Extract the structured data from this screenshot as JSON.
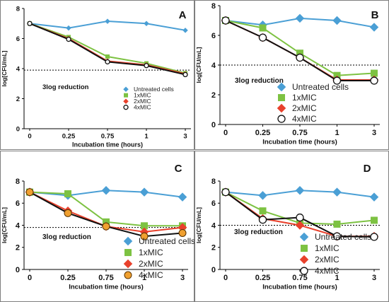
{
  "chart_data": [
    {
      "panel_label": "A",
      "type": "line",
      "categories": [
        "0",
        "0.25",
        "0.75",
        "1",
        "3"
      ],
      "xlabel": "Incubation time (hours)",
      "ylabel": "log[CFU/mL]",
      "ylim": [
        0,
        8
      ],
      "yticks": [
        0,
        2,
        4,
        6,
        8
      ],
      "threshold": 3.9,
      "annotation": "3log reduction",
      "legend_position": "bottom-right",
      "series": [
        {
          "name": "Untreated cells",
          "marker": "diamond",
          "color": "#4a9fd5",
          "values": [
            7.0,
            6.7,
            7.15,
            7.0,
            6.55
          ]
        },
        {
          "name": "1xMIC",
          "marker": "square",
          "color": "#7dc242",
          "values": [
            7.0,
            6.1,
            4.8,
            4.35,
            3.7
          ]
        },
        {
          "name": "2xMIC",
          "marker": "diamond",
          "color": "#e8412c",
          "values": [
            7.0,
            6.0,
            4.5,
            4.25,
            3.65
          ]
        },
        {
          "name": "4xMIC",
          "marker": "circle-open",
          "color": "#111111",
          "values": [
            7.0,
            5.95,
            4.45,
            4.2,
            3.6
          ]
        }
      ]
    },
    {
      "panel_label": "B",
      "type": "line",
      "categories": [
        "0",
        "0.25",
        "0.75",
        "1",
        "3"
      ],
      "xlabel": "Incubation time (hours)",
      "ylabel": "log[CFU/mL]",
      "ylim": [
        0,
        8
      ],
      "yticks": [
        0,
        2,
        4,
        6,
        8
      ],
      "threshold": 4.0,
      "annotation": "3log reduction",
      "legend_position": "bottom-right",
      "series": [
        {
          "name": "Untreated cells",
          "marker": "diamond",
          "color": "#4a9fd5",
          "values": [
            7.0,
            6.7,
            7.15,
            7.0,
            6.55
          ]
        },
        {
          "name": "1xMIC",
          "marker": "square",
          "color": "#7dc242",
          "values": [
            7.0,
            6.5,
            4.8,
            3.3,
            3.45
          ]
        },
        {
          "name": "2xMIC",
          "marker": "diamond",
          "color": "#e8412c",
          "values": [
            7.0,
            5.85,
            4.5,
            3.0,
            3.0
          ]
        },
        {
          "name": "4xMIC",
          "marker": "circle-open",
          "color": "#111111",
          "values": [
            7.0,
            5.85,
            4.5,
            2.95,
            2.95
          ]
        }
      ]
    },
    {
      "panel_label": "C",
      "type": "line",
      "categories": [
        "0",
        "0.25",
        "0.75",
        "1",
        "3"
      ],
      "xlabel": "Incubation time (hours)",
      "ylabel": "log[CFU/mL]",
      "ylim": [
        0,
        8
      ],
      "yticks": [
        0,
        2,
        4,
        6,
        8
      ],
      "threshold": 3.8,
      "annotation": "3log reduction",
      "legend_position": "bottom-right",
      "series": [
        {
          "name": "Untreated cells",
          "marker": "diamond",
          "color": "#4a9fd5",
          "values": [
            7.0,
            6.7,
            7.15,
            7.0,
            6.55
          ]
        },
        {
          "name": "1xMIC",
          "marker": "square",
          "color": "#7dc242",
          "values": [
            7.0,
            6.85,
            4.3,
            3.95,
            3.95
          ]
        },
        {
          "name": "2xMIC",
          "marker": "diamond",
          "color": "#e8412c",
          "values": [
            7.0,
            5.3,
            3.9,
            3.4,
            3.8
          ]
        },
        {
          "name": "4xMIC",
          "marker": "circle-orange",
          "color": "#f0a030",
          "values": [
            7.0,
            5.1,
            3.9,
            3.0,
            3.3
          ]
        }
      ]
    },
    {
      "panel_label": "D",
      "type": "line",
      "categories": [
        "0",
        "0.25",
        "0.75",
        "1",
        "3"
      ],
      "xlabel": "Incubation time (hours)",
      "ylabel": "log[CFU/mL]",
      "ylim": [
        0,
        8
      ],
      "yticks": [
        0,
        2,
        4,
        6,
        8
      ],
      "threshold": 4.0,
      "annotation": "3log reduction",
      "legend_position": "bottom-right",
      "series": [
        {
          "name": "Untreated cells",
          "marker": "diamond",
          "color": "#4a9fd5",
          "values": [
            7.0,
            6.7,
            7.15,
            7.0,
            6.55
          ]
        },
        {
          "name": "1xMIC",
          "marker": "square",
          "color": "#7dc242",
          "values": [
            7.0,
            5.3,
            4.2,
            4.1,
            4.45
          ]
        },
        {
          "name": "2xMIC",
          "marker": "diamond",
          "color": "#e8412c",
          "values": [
            7.0,
            4.6,
            4.0,
            3.0,
            3.0
          ]
        },
        {
          "name": "4xMIC",
          "marker": "circle-open",
          "color": "#111111",
          "values": [
            7.0,
            4.5,
            4.7,
            3.0,
            2.95
          ]
        }
      ]
    }
  ]
}
